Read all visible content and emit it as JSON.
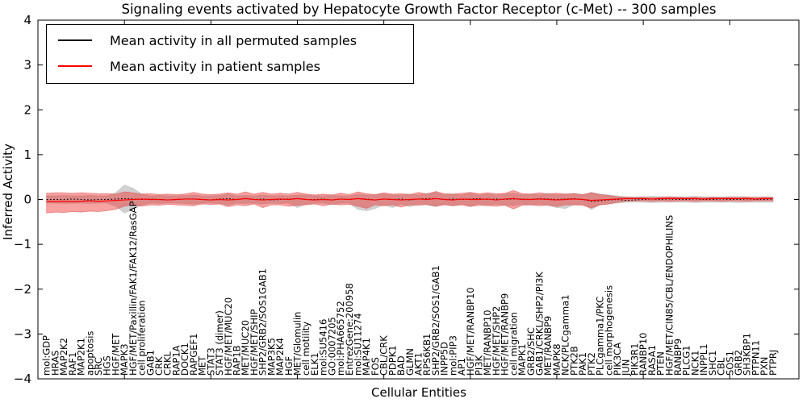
{
  "chart_data": {
    "type": "line",
    "title": "Signaling events activated by Hepatocyte Growth Factor Receptor (c-Met) -- 300 samples",
    "xlabel": "Cellular Entities",
    "ylabel": "Inferred Activity",
    "ylim": [
      -4,
      4
    ],
    "yticks": [
      4,
      3,
      2,
      1,
      0,
      -1,
      -2,
      -3,
      -4
    ],
    "xtick_positions": [
      0,
      10,
      20,
      30,
      40,
      50,
      60,
      70,
      80
    ],
    "grid": false,
    "legend_position": "upper left",
    "legend": [
      {
        "label": "Mean activity in all permuted samples",
        "color": "#000000"
      },
      {
        "label": "Mean activity in patient samples",
        "color": "#ff0000"
      }
    ],
    "entities": [
      "mol:GDP",
      "HRAS",
      "MAP2K2",
      "RAF1",
      "MAP2K1",
      "apoptosis",
      "SRC",
      "HGS",
      "HGF/MET",
      "MAPK3",
      "HGF/MET/Paxillin/FAK1/FAK12/RasGAP",
      "cell proliferation",
      "GAB1",
      "CRK",
      "CRKL",
      "RAP1A",
      "DOCK1",
      "RAPGEF1",
      "MET",
      "STAT3",
      "STAT3 (dimer)",
      "HGF/MET/MUC20",
      "RAP1B",
      "MET/MUC20",
      "HGF/MET/SHIP",
      "SHP2/GRB2/SOS1GAB1",
      "MAP3K5",
      "MAP2K4",
      "HGF",
      "MET/Glomulin",
      "cell motility",
      "ELK1",
      "mol:SU5416",
      "GO:0007205",
      "mol:PHA665752",
      "EntrezGene:200958",
      "mol:SU11274",
      "MAP4K1",
      "FOS",
      "CBL/CRK",
      "PDPK1",
      "BAD",
      "GLMN",
      "AKT1",
      "RPS6KB1",
      "SHP2/GRB2/SOS1/GAB1",
      "INPP5D",
      "mol:PIP3",
      "AP1",
      "HGF/MET/RANBP10",
      "PI3K",
      "MET/RANBP10",
      "HGF/MET/SHP2",
      "HGF/MET/RANBP9",
      "cell migration",
      "MAPK1",
      "GRB2/SHC",
      "GAB1/CRKL/SHP2/PI3K",
      "MET/RANBP9",
      "MAPK8",
      "NCK/PLCgamma1",
      "PTK2B",
      "PAK1",
      "PTK2",
      "PLCgamma1/PKC",
      "cell morphogenesis",
      "PIK3CA",
      "JUN",
      "PIK3R1",
      "RANBP10",
      "RASA1",
      "PTEN",
      "HGF/MET/CIN85/CBL/ENDOPHILINS",
      "RANBP9",
      "PLCG1",
      "NCK1",
      "INPPL1",
      "SHC1",
      "CBL",
      "SOS1",
      "GRB2",
      "SH3KBP1",
      "PTPN11",
      "PXN",
      "PTPRJ"
    ],
    "series": [
      {
        "name": "permuted-mean",
        "color": "#000000",
        "width": 1.1,
        "dash": "1.6,2.6",
        "values": [
          0,
          0,
          0,
          0.01,
          0,
          -0.01,
          0,
          0,
          0.01,
          0.02,
          0.01,
          0,
          0.01,
          0,
          -0.01,
          0,
          0.01,
          0.01,
          0,
          -0.01,
          0.01,
          0.02,
          0,
          0.02,
          0,
          0.01,
          -0.01,
          0,
          0.01,
          0.02,
          0,
          0,
          0.01,
          -0.01,
          0.01,
          0,
          0.02,
          0.01,
          -0.01,
          0.01,
          0,
          0.01,
          -0.01,
          0.01,
          0.02,
          0.02,
          0,
          0.01,
          0,
          0.01,
          0.02,
          0,
          0.01,
          0,
          0.01,
          0.01,
          0,
          0.02,
          0.01,
          0,
          0.01,
          0.02,
          0,
          -0.04,
          -0.03,
          -0.01,
          0,
          -0.02,
          -0.01,
          0,
          0.01,
          0,
          0.01,
          0,
          0,
          0.01,
          0,
          0,
          0.01,
          0,
          0,
          0.01,
          0,
          0,
          0.01
        ]
      },
      {
        "name": "patient-mean",
        "color": "#ff0000",
        "width": 1.2,
        "dash": "",
        "values": [
          -0.04,
          -0.05,
          -0.04,
          -0.05,
          -0.04,
          -0.03,
          -0.04,
          -0.03,
          -0.02,
          -0.01,
          0,
          0.01,
          0,
          0,
          -0.01,
          0,
          0.01,
          0.01,
          0,
          -0.01,
          0,
          -0.01,
          0,
          0.02,
          0,
          -0.01,
          0,
          0.01,
          0,
          0.02,
          0,
          -0.01,
          0,
          -0.01,
          0.01,
          0,
          0.02,
          0,
          -0.01,
          0.01,
          0,
          -0.01,
          0,
          0.01,
          0,
          0.02,
          0,
          -0.01,
          0.01,
          0,
          0,
          0.01,
          -0.01,
          0.01,
          0.02,
          0,
          0,
          0.01,
          0,
          -0.01,
          0,
          0.01,
          0,
          -0.02,
          -0.01,
          0,
          0.01,
          0.02,
          0.02,
          0.02,
          0.01,
          0.02,
          0.02,
          0.02,
          0.02,
          0.02,
          0.01,
          0.02,
          0.02,
          0.02,
          0.02,
          0.02,
          0.01,
          0.02,
          0.02
        ]
      }
    ],
    "bands": [
      {
        "name": "permuted-std",
        "color": "#999999",
        "opacity": 0.45,
        "edge_color": "#bbbbbb",
        "upper": [
          0.08,
          0.08,
          0.09,
          0.08,
          0.08,
          0.09,
          0.08,
          0.08,
          0.15,
          0.32,
          0.25,
          0.12,
          0.08,
          0.09,
          0.08,
          0.08,
          0.09,
          0.1,
          0.08,
          0.08,
          0.09,
          0.12,
          0.08,
          0.09,
          0.08,
          0.1,
          0.08,
          0.09,
          0.08,
          0.1,
          0.1,
          0.08,
          0.08,
          0.09,
          0.08,
          0.08,
          0.12,
          0.1,
          0.1,
          0.12,
          0.1,
          0.1,
          0.12,
          0.1,
          0.14,
          0.16,
          0.1,
          0.12,
          0.1,
          0.14,
          0.1,
          0.12,
          0.1,
          0.12,
          0.14,
          0.1,
          0.12,
          0.1,
          0.14,
          0.1,
          0.12,
          0.14,
          0.1,
          0.16,
          0.12,
          0.1,
          0.08,
          0.06,
          0.06,
          0.06,
          0.07,
          0.06,
          0.06,
          0.06,
          0.06,
          0.07,
          0.06,
          0.06,
          0.06,
          0.06,
          0.07,
          0.06,
          0.06,
          0.06,
          0.06
        ],
        "lower": [
          -0.08,
          -0.08,
          -0.09,
          -0.08,
          -0.08,
          -0.09,
          -0.08,
          -0.08,
          -0.15,
          -0.3,
          -0.22,
          -0.12,
          -0.08,
          -0.09,
          -0.08,
          -0.08,
          -0.09,
          -0.1,
          -0.08,
          -0.08,
          -0.09,
          -0.12,
          -0.08,
          -0.09,
          -0.08,
          -0.1,
          -0.08,
          -0.09,
          -0.08,
          -0.18,
          -0.1,
          -0.08,
          -0.08,
          -0.12,
          -0.08,
          -0.08,
          -0.22,
          -0.25,
          -0.2,
          -0.12,
          -0.18,
          -0.1,
          -0.16,
          -0.1,
          -0.12,
          -0.16,
          -0.1,
          -0.14,
          -0.1,
          -0.14,
          -0.1,
          -0.12,
          -0.1,
          -0.12,
          -0.14,
          -0.1,
          -0.12,
          -0.1,
          -0.14,
          -0.18,
          -0.2,
          -0.12,
          -0.1,
          -0.22,
          -0.12,
          -0.1,
          -0.08,
          -0.06,
          -0.06,
          -0.06,
          -0.07,
          -0.06,
          -0.06,
          -0.06,
          -0.06,
          -0.07,
          -0.06,
          -0.06,
          -0.06,
          -0.06,
          -0.07,
          -0.06,
          -0.06,
          -0.06,
          -0.06
        ]
      },
      {
        "name": "patient-std",
        "color": "#ee2222",
        "opacity": 0.42,
        "edge_color": "#e06060",
        "upper": [
          0.14,
          0.15,
          0.15,
          0.14,
          0.15,
          0.14,
          0.13,
          0.13,
          0.12,
          0.17,
          0.15,
          0.12,
          0.13,
          0.11,
          0.12,
          0.11,
          0.12,
          0.16,
          0.12,
          0.11,
          0.12,
          0.15,
          0.12,
          0.17,
          0.12,
          0.16,
          0.12,
          0.14,
          0.12,
          0.16,
          0.12,
          0.1,
          0.12,
          0.1,
          0.14,
          0.11,
          0.17,
          0.13,
          0.11,
          0.15,
          0.12,
          0.13,
          0.11,
          0.16,
          0.12,
          0.18,
          0.13,
          0.12,
          0.14,
          0.16,
          0.13,
          0.15,
          0.13,
          0.14,
          0.2,
          0.13,
          0.12,
          0.15,
          0.12,
          0.14,
          0.12,
          0.13,
          0.11,
          0.15,
          0.11,
          0.09,
          0.06,
          0.05,
          0.04,
          0.05,
          0.04,
          0.05,
          0.06,
          0.05,
          0.04,
          0.05,
          0.04,
          0.05,
          0.04,
          0.05,
          0.04,
          0.05,
          0.04,
          0.05,
          0.04
        ],
        "lower": [
          -0.3,
          -0.28,
          -0.29,
          -0.27,
          -0.28,
          -0.26,
          -0.27,
          -0.25,
          -0.22,
          -0.15,
          -0.12,
          -0.15,
          -0.12,
          -0.13,
          -0.11,
          -0.12,
          -0.13,
          -0.14,
          -0.1,
          -0.11,
          -0.1,
          -0.16,
          -0.12,
          -0.14,
          -0.1,
          -0.18,
          -0.12,
          -0.12,
          -0.15,
          -0.13,
          -0.12,
          -0.1,
          -0.14,
          -0.1,
          -0.12,
          -0.11,
          -0.15,
          -0.2,
          -0.12,
          -0.14,
          -0.12,
          -0.17,
          -0.12,
          -0.13,
          -0.11,
          -0.15,
          -0.12,
          -0.14,
          -0.12,
          -0.16,
          -0.13,
          -0.14,
          -0.15,
          -0.13,
          -0.21,
          -0.13,
          -0.12,
          -0.14,
          -0.12,
          -0.16,
          -0.12,
          -0.12,
          -0.13,
          -0.19,
          -0.12,
          -0.1,
          -0.06,
          -0.04,
          -0.03,
          -0.03,
          -0.04,
          -0.03,
          -0.04,
          -0.03,
          -0.03,
          -0.04,
          -0.03,
          -0.03,
          -0.04,
          -0.03,
          -0.03,
          -0.04,
          -0.03,
          -0.03,
          -0.03
        ]
      }
    ]
  }
}
